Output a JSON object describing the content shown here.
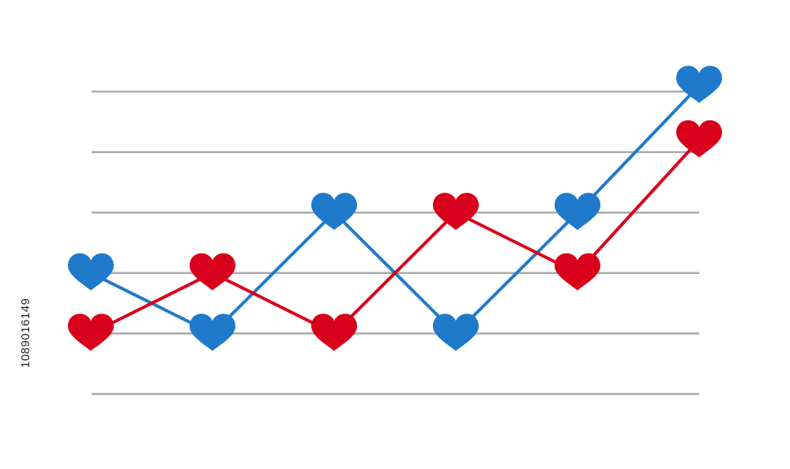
{
  "colors": {
    "series_blue": "#1f7acb",
    "series_red": "#d9001b",
    "gridline": "#aaaaaa",
    "background": "#ffffff"
  },
  "marker_icon": "heart-icon",
  "watermark": {
    "stock_id": "1089016149"
  },
  "chart_data": {
    "type": "line",
    "x": [
      1,
      2,
      3,
      4,
      5,
      6
    ],
    "ylim": [
      0,
      5
    ],
    "gridlines_y": [
      0,
      1,
      2,
      3,
      4,
      5
    ],
    "grid": true,
    "axes_visible": false,
    "legend": "none",
    "title": "",
    "xlabel": "",
    "ylabel": "",
    "series": [
      {
        "values": [
          2.0,
          1.0,
          3.0,
          1.0,
          3.0,
          5.1
        ]
      },
      {
        "values": [
          1.0,
          2.0,
          1.0,
          3.0,
          2.0,
          4.2
        ]
      }
    ]
  }
}
